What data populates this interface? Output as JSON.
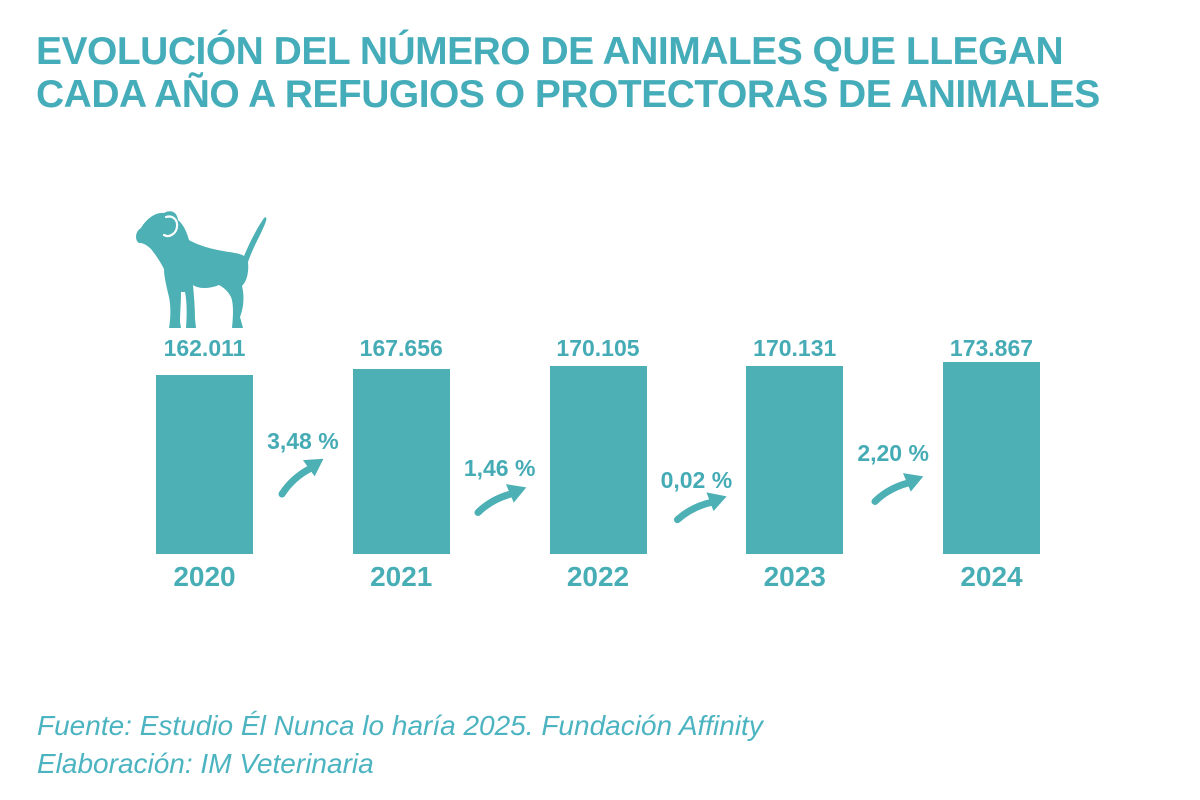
{
  "title": {
    "line1": "EVOLUCIÓN DEL NÚMERO DE ANIMALES QUE LLEGAN",
    "line2": "CADA AÑO A REFUGIOS O PROTECTORAS DE ANIMALES"
  },
  "chart_data": {
    "type": "bar",
    "title": "Evolución del número de animales que llegan cada año a refugios o protectoras de animales",
    "categories": [
      "2020",
      "2021",
      "2022",
      "2023",
      "2024"
    ],
    "values": [
      162011,
      167656,
      170105,
      170131,
      173867
    ],
    "value_labels": [
      "162.011",
      "167.656",
      "170.105",
      "170.131",
      "173.867"
    ],
    "annotations": [
      {
        "between": [
          "2020",
          "2021"
        ],
        "label": "3,48 %"
      },
      {
        "between": [
          "2021",
          "2022"
        ],
        "label": "1,46 %"
      },
      {
        "between": [
          "2022",
          "2023"
        ],
        "label": "0,02 %"
      },
      {
        "between": [
          "2023",
          "2024"
        ],
        "label": "2,20 %"
      }
    ],
    "xlabel": "",
    "ylabel": "",
    "ylim": [
      0,
      173867
    ],
    "grid": false,
    "legend": false
  },
  "icons": {
    "dog": "dog-icon",
    "growth_arrow": "growth-arrow-icon"
  },
  "colors": {
    "bar_teal": "#4CB0B5",
    "title_teal": "#45ACB9",
    "footer_teal": "#4CB4C1",
    "background": "#FFFFFF"
  },
  "footer": {
    "line1": "Fuente: Estudio Él Nunca lo haría 2025. Fundación Affinity",
    "line2": "Elaboración: IM Veterinaria"
  }
}
